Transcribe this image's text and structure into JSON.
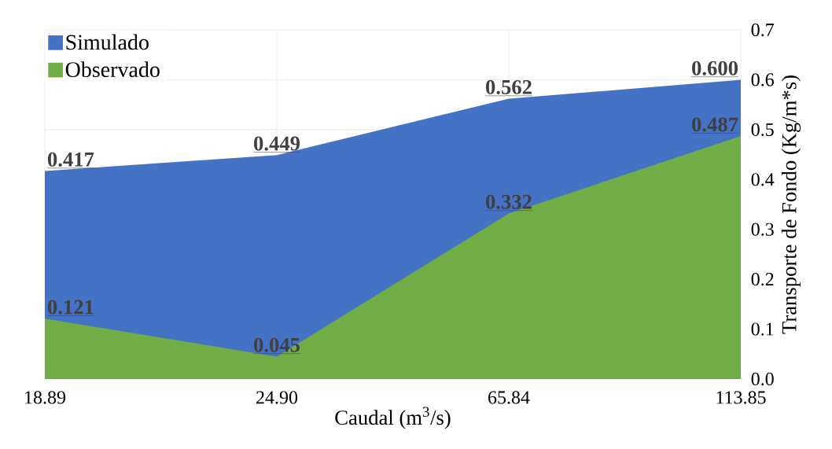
{
  "chart_data": {
    "type": "area",
    "categories": [
      "18.89",
      "24.90",
      "65.84",
      "113.85"
    ],
    "series": [
      {
        "name": "Simulado",
        "color": "#4472c4",
        "values": [
          0.417,
          0.449,
          0.562,
          0.6
        ],
        "value_labels": [
          "0.417",
          "0.449",
          "0.562",
          "0.600"
        ]
      },
      {
        "name": "Observado",
        "color": "#70ad47",
        "values": [
          0.121,
          0.045,
          0.332,
          0.487
        ],
        "value_labels": [
          "0.121",
          "0.045",
          "0.332",
          "0.487"
        ]
      }
    ],
    "xlabel": "Caudal (m$^{3}$/s)",
    "ylabel": "Transporte de Fondo (Kg/m*s)",
    "ylim": [
      0,
      0.7
    ],
    "yticks": [
      {
        "value": 0,
        "label": "0.0"
      },
      0.1,
      0.2,
      0.3,
      0.4,
      0.5,
      0.6,
      0.7
    ],
    "grid": true,
    "legend": "top left"
  }
}
